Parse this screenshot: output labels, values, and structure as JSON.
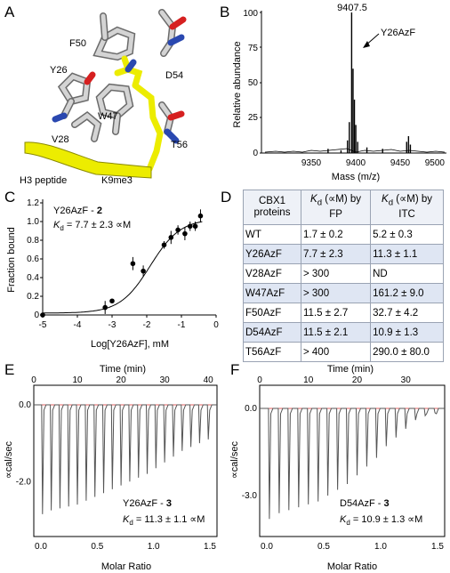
{
  "panels": {
    "a": {
      "letter": "A",
      "residue_labels": [
        "F50",
        "D54",
        "Y26",
        "W47",
        "V28",
        "T56",
        "K9me3",
        "H3 peptide"
      ]
    },
    "b": {
      "letter": "B",
      "peak_label": "9407.5",
      "arrow_label": "Y26AzF",
      "xlabel": "Mass (m/z)",
      "ylabel": "Relative abundance",
      "xticks": [
        "9350",
        "9400",
        "9450",
        "9500"
      ],
      "yticks": [
        "0",
        "25",
        "50",
        "75",
        "100"
      ]
    },
    "c": {
      "letter": "C",
      "annotation_name": "Y26AzF - ",
      "annotation_bold": "2",
      "kd_value": " = 7.7 ± 2.3 ∝M",
      "xlabel": "Log[Y26AzF], mM",
      "ylabel": "Fraction bound",
      "xticks": [
        "-5",
        "-4",
        "-3",
        "-2",
        "-1",
        "0"
      ],
      "yticks": [
        "0",
        "0.2",
        "0.4",
        "0.6",
        "0.8",
        "1.0",
        "1.2"
      ]
    },
    "d": {
      "letter": "D",
      "headers": [
        "CBX1 proteins",
        "(∝M) by FP",
        "(∝M) by ITC"
      ],
      "rows": [
        [
          "WT",
          "1.7 ± 0.2",
          "5.2 ± 0.3"
        ],
        [
          "Y26AzF",
          "7.7 ± 2.3",
          "11.3 ± 1.1"
        ],
        [
          "V28AzF",
          "> 300",
          "ND"
        ],
        [
          "W47AzF",
          "> 300",
          "161.2 ± 9.0"
        ],
        [
          "F50AzF",
          "11.5 ± 2.7",
          "32.7 ± 4.2"
        ],
        [
          "D54AzF",
          "11.5 ± 2.1",
          "10.9 ± 1.3"
        ],
        [
          "T56AzF",
          "> 400",
          "290.0 ± 80.0"
        ]
      ]
    },
    "e": {
      "letter": "E",
      "top_label": "Time (min)",
      "top_ticks": [
        "0",
        "10",
        "20",
        "30",
        "40"
      ],
      "ylabel": "∝cal/sec",
      "yticks": [
        "0.0",
        "-2.0"
      ],
      "xlabel": "Molar Ratio",
      "xticks": [
        "0.0",
        "0.5",
        "1.0",
        "1.5"
      ],
      "annotation_name": "Y26AzF - ",
      "annotation_bold": "3",
      "kd_value": " = 11.3 ± 1.1 ∝M"
    },
    "f": {
      "letter": "F",
      "top_label": "Time (min)",
      "top_ticks": [
        "0",
        "10",
        "20",
        "30"
      ],
      "ylabel": "∝cal/sec",
      "yticks": [
        "0.0",
        "-3.0"
      ],
      "xlabel": "Molar Ratio",
      "xticks": [
        "0.0",
        "0.5",
        "1.0",
        "1.5"
      ],
      "annotation_name": "D54AzF - ",
      "annotation_bold": "3",
      "kd_value": " = 10.9 ± 1.3 ∝M"
    }
  },
  "kd_symbol": "K",
  "kd_sub": "d",
  "chart_data": [
    {
      "type": "line",
      "panel": "B",
      "xlabel": "Mass (m/z)",
      "ylabel": "Relative abundance",
      "xlim": [
        9310,
        9510
      ],
      "ylim": [
        0,
        100
      ],
      "peaks": [
        {
          "x": 9382,
          "y": 3
        },
        {
          "x": 9396,
          "y": 2
        },
        {
          "x": 9403,
          "y": 9
        },
        {
          "x": 9405,
          "y": 22
        },
        {
          "x": 9407.5,
          "y": 100
        },
        {
          "x": 9409,
          "y": 60
        },
        {
          "x": 9410.5,
          "y": 38
        },
        {
          "x": 9412,
          "y": 20
        },
        {
          "x": 9414,
          "y": 8
        },
        {
          "x": 9424,
          "y": 4
        },
        {
          "x": 9441,
          "y": 3
        },
        {
          "x": 9467,
          "y": 8
        },
        {
          "x": 9469,
          "y": 12
        },
        {
          "x": 9471,
          "y": 6
        }
      ]
    },
    {
      "type": "scatter",
      "panel": "C",
      "xlabel": "Log[Y26AzF], mM",
      "ylabel": "Fraction bound",
      "xlim": [
        -5,
        0
      ],
      "ylim": [
        0,
        1.2
      ],
      "points": [
        {
          "x": -5.0,
          "y": 0.0,
          "err": 0.02
        },
        {
          "x": -3.2,
          "y": 0.08,
          "err": 0.07
        },
        {
          "x": -3.0,
          "y": 0.15,
          "err": 0.01
        },
        {
          "x": -2.4,
          "y": 0.55,
          "err": 0.07
        },
        {
          "x": -2.1,
          "y": 0.47,
          "err": 0.06
        },
        {
          "x": -1.5,
          "y": 0.75,
          "err": 0.04
        },
        {
          "x": -1.3,
          "y": 0.83,
          "err": 0.07
        },
        {
          "x": -1.1,
          "y": 0.91,
          "err": 0.05
        },
        {
          "x": -0.9,
          "y": 0.87,
          "err": 0.07
        },
        {
          "x": -0.75,
          "y": 0.95,
          "err": 0.05
        },
        {
          "x": -0.6,
          "y": 0.95,
          "err": 0.05
        },
        {
          "x": -0.45,
          "y": 1.06,
          "err": 0.07
        }
      ],
      "fit": {
        "model": "sigmoid",
        "bottom": 0.02,
        "top": 1.03,
        "logEC50": -1.9,
        "hill": 1.0
      }
    },
    {
      "type": "line",
      "panel": "E",
      "top_xlabel": "Time (min)",
      "xlim_time": [
        0,
        42
      ],
      "ylabel": "∝cal/sec",
      "ylim": [
        -3.2,
        0.15
      ],
      "injection_times": [
        2,
        4,
        6,
        8,
        10,
        12,
        14,
        16,
        18,
        20,
        22,
        24,
        26,
        28,
        30,
        32,
        34,
        36,
        38,
        40
      ],
      "peak_heights": [
        -2.85,
        -2.75,
        -2.7,
        -2.65,
        -2.6,
        -2.5,
        -2.4,
        -2.3,
        -2.2,
        -2.1,
        -2.0,
        -1.9,
        -1.8,
        -1.65,
        -1.5,
        -1.35,
        -1.2,
        -1.1,
        -1.0,
        -0.9
      ]
    },
    {
      "type": "line",
      "panel": "F",
      "top_xlabel": "Time (min)",
      "xlim_time": [
        0,
        38
      ],
      "ylabel": "∝cal/sec",
      "ylim": [
        -4.1,
        0.2
      ],
      "injection_times": [
        2,
        4,
        6,
        8,
        10,
        12,
        14,
        16,
        18,
        20,
        22,
        24,
        26,
        28,
        30,
        32,
        34,
        36
      ],
      "peak_heights": [
        -3.8,
        -3.6,
        -3.5,
        -3.4,
        -3.3,
        -3.2,
        -3.0,
        -2.8,
        -2.6,
        -2.3,
        -2.0,
        -1.7,
        -1.3,
        -1.0,
        -0.7,
        -0.4,
        -0.25,
        -0.15
      ]
    }
  ]
}
